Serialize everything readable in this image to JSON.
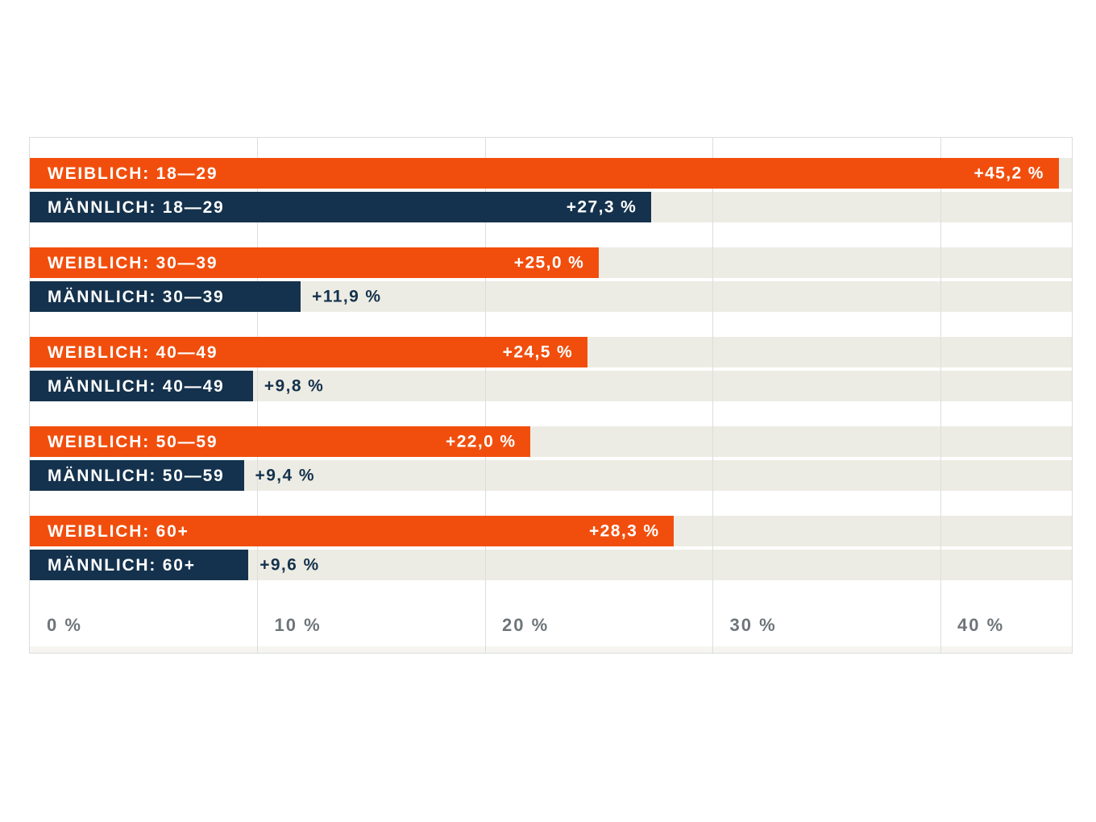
{
  "colors": {
    "female_bar": "#f14e0d",
    "male_bar": "#14324d",
    "track": "#edece4",
    "gridline": "#dadedd",
    "border": "#d9dddc",
    "axis_text": "#6e7579",
    "bar_text": "#ffffff",
    "outside_value_text": "#14324d",
    "background": "#ffffff"
  },
  "chart_data": {
    "type": "bar",
    "orientation": "horizontal",
    "title": "",
    "xlabel": "",
    "ylabel": "",
    "categories": [
      "18—29",
      "30—39",
      "40—49",
      "50—59",
      "60+"
    ],
    "series": [
      {
        "name": "WEIBLICH",
        "color": "#f14e0d",
        "values": [
          45.2,
          25.0,
          24.5,
          22.0,
          28.3
        ],
        "bar_labels": [
          "WEIBLICH: 18—29",
          "WEIBLICH: 30—39",
          "WEIBLICH: 40—49",
          "WEIBLICH: 50—59",
          "WEIBLICH: 60+"
        ],
        "value_labels": [
          "+45,2 %",
          "+25,0 %",
          "+24,5 %",
          "+22,0 %",
          "+28,3 %"
        ]
      },
      {
        "name": "MÄNNLICH",
        "color": "#14324d",
        "values": [
          27.3,
          11.9,
          9.8,
          9.4,
          9.6
        ],
        "bar_labels": [
          "MÄNNLICH: 18—29",
          "MÄNNLICH: 30—39",
          "MÄNNLICH: 40—49",
          "MÄNNLICH: 50—59",
          "MÄNNLICH: 60+"
        ],
        "value_labels": [
          "+27,3 %",
          "+11,9 %",
          "+9,8 %",
          "+9,4 %",
          "+9,6 %"
        ]
      }
    ],
    "xlim": [
      0,
      45.77
    ],
    "x_ticks": [
      {
        "value": 0,
        "label": "0 %"
      },
      {
        "value": 10,
        "label": "10 %"
      },
      {
        "value": 20,
        "label": "20 %"
      },
      {
        "value": 30,
        "label": "30 %"
      },
      {
        "value": 40,
        "label": "40 %"
      }
    ],
    "grid": true,
    "legend": "none",
    "value_label_inside_min": 15
  }
}
